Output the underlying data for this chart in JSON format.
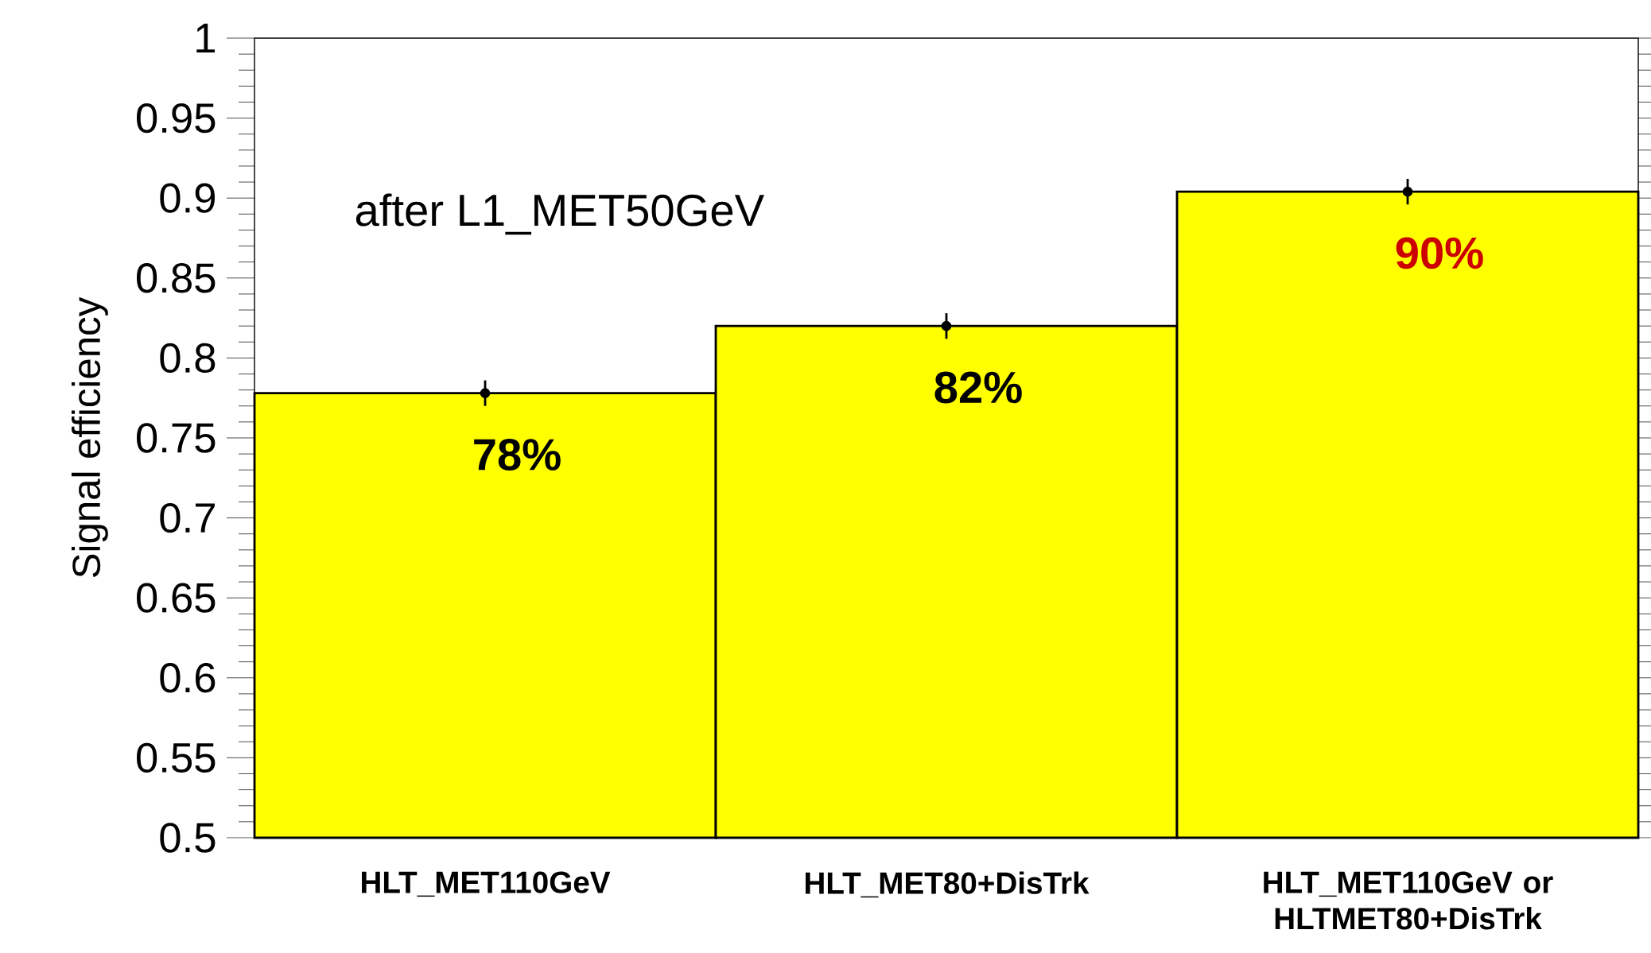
{
  "chart_data": {
    "type": "bar",
    "ylabel": "Signal efficiency",
    "categories": [
      "HLT_MET110GeV",
      "HLT_MET80+DisTrk",
      "HLT_MET110GeV or HLTMET80+DisTrk"
    ],
    "series": [
      {
        "color": "#ffff00",
        "values": [
          0.778,
          0.82,
          0.904
        ],
        "value_labels": [
          "78%",
          "82%",
          "90%"
        ]
      },
      {
        "type": "scatter",
        "color": "#000000",
        "x": [
          "HLT_MET110GeV",
          "HLT_MET80+DisTrk",
          "HLT_MET110GeV or HLTMET80+DisTrk"
        ],
        "values": [
          0.778,
          0.82,
          0.904
        ],
        "errors": [
          0.008,
          0.008,
          0.008
        ]
      }
    ],
    "marker": "circle",
    "ylim": [
      0.5,
      1
    ],
    "yticks": [
      0.5,
      0.55,
      0.6,
      0.65,
      0.7,
      0.75,
      0.8,
      0.85,
      0.9,
      0.95,
      1
    ],
    "annotations": [
      "after L1_MET50GeV"
    ],
    "grid": false
  }
}
